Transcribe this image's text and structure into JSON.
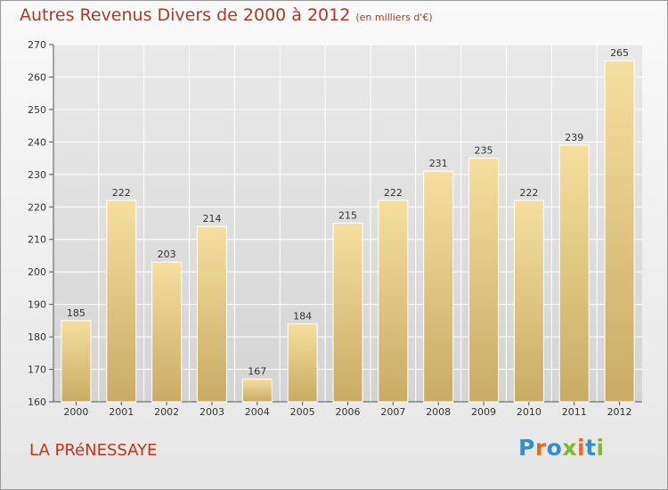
{
  "header": {
    "title": "Autres Revenus Divers de 2000 à 2012",
    "subtitle": "(en milliers d'€)"
  },
  "footer": {
    "commune": "LA PRéNESSAYE",
    "logo": "Proxiti"
  },
  "colors": {
    "title": "#a33d2c",
    "commune": "#c4331c",
    "bar_light": "#f5dfa0",
    "bar_dark": "#c9ab63",
    "grid": "#ffffff",
    "logo_letters": [
      "#2f8fd1",
      "#e96a1f",
      "#2f8fd1",
      "#7fba2a",
      "#e96a1f",
      "#2f8fd1",
      "#7fba2a"
    ]
  },
  "chart_data": {
    "type": "bar",
    "title": "Autres Revenus Divers de 2000 à 2012",
    "subtitle": "(en milliers d'€)",
    "categories": [
      "2000",
      "2001",
      "2002",
      "2003",
      "2004",
      "2005",
      "2006",
      "2007",
      "2008",
      "2009",
      "2010",
      "2011",
      "2012"
    ],
    "values": [
      185,
      222,
      203,
      214,
      167,
      184,
      215,
      222,
      231,
      235,
      222,
      239,
      265
    ],
    "ylim": [
      160,
      270
    ],
    "yticks": [
      160,
      170,
      180,
      190,
      200,
      210,
      220,
      230,
      240,
      250,
      260,
      270
    ],
    "grid": true,
    "data_labels": true
  }
}
